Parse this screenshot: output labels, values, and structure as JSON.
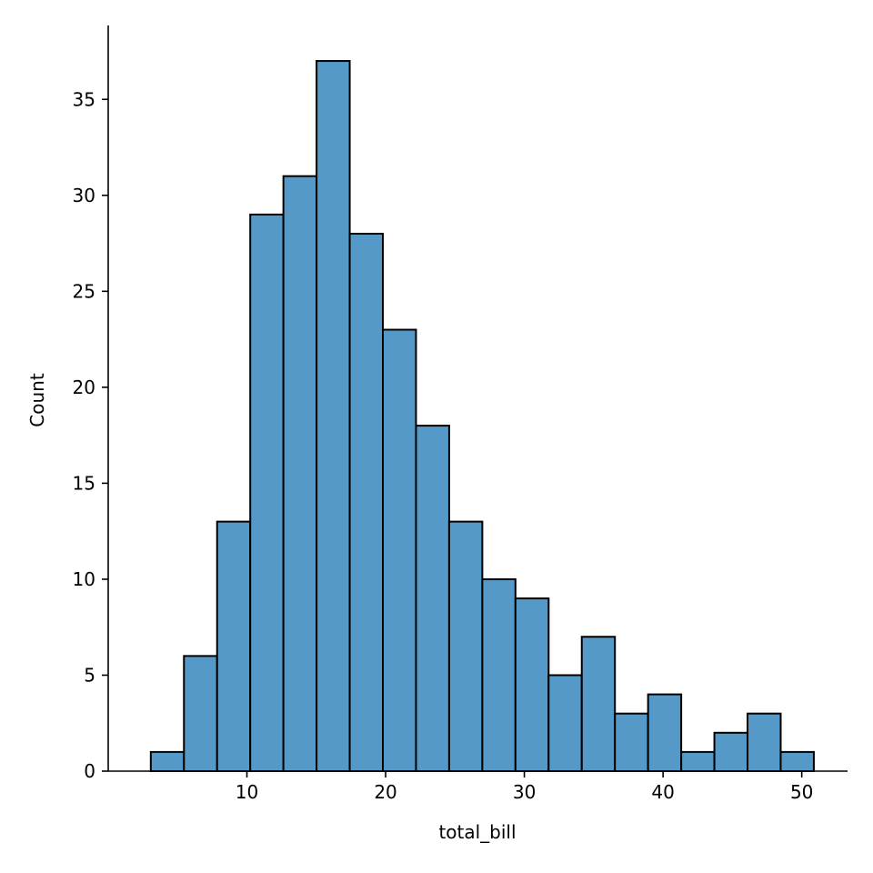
{
  "chart_data": {
    "type": "bar",
    "subtype": "histogram",
    "title": "",
    "xlabel": "total_bill",
    "ylabel": "Count",
    "xlim": [
      0.0,
      53.3
    ],
    "ylim": [
      0,
      38.85
    ],
    "xticks": [
      10,
      20,
      30,
      40,
      50
    ],
    "yticks": [
      0,
      5,
      10,
      15,
      20,
      25,
      30,
      35
    ],
    "grid": false,
    "legend": "none",
    "bar_color": "#5499c7",
    "edge_color": "#000000",
    "bins": [
      {
        "x0": 3.07,
        "x1": 5.46,
        "count": 1
      },
      {
        "x0": 5.46,
        "x1": 7.85,
        "count": 6
      },
      {
        "x0": 7.85,
        "x1": 10.24,
        "count": 13
      },
      {
        "x0": 10.24,
        "x1": 12.63,
        "count": 29
      },
      {
        "x0": 12.63,
        "x1": 15.02,
        "count": 31
      },
      {
        "x0": 15.02,
        "x1": 17.41,
        "count": 37
      },
      {
        "x0": 17.41,
        "x1": 19.8,
        "count": 28
      },
      {
        "x0": 19.8,
        "x1": 22.19,
        "count": 23
      },
      {
        "x0": 22.19,
        "x1": 24.58,
        "count": 18
      },
      {
        "x0": 24.58,
        "x1": 26.97,
        "count": 13
      },
      {
        "x0": 26.97,
        "x1": 29.36,
        "count": 10
      },
      {
        "x0": 29.36,
        "x1": 31.75,
        "count": 9
      },
      {
        "x0": 31.75,
        "x1": 34.14,
        "count": 5
      },
      {
        "x0": 34.14,
        "x1": 36.53,
        "count": 7
      },
      {
        "x0": 36.53,
        "x1": 38.92,
        "count": 3
      },
      {
        "x0": 38.92,
        "x1": 41.31,
        "count": 4
      },
      {
        "x0": 41.31,
        "x1": 43.7,
        "count": 1
      },
      {
        "x0": 43.7,
        "x1": 46.09,
        "count": 2
      },
      {
        "x0": 46.09,
        "x1": 48.48,
        "count": 3
      },
      {
        "x0": 48.48,
        "x1": 50.87,
        "count": 1
      }
    ]
  }
}
